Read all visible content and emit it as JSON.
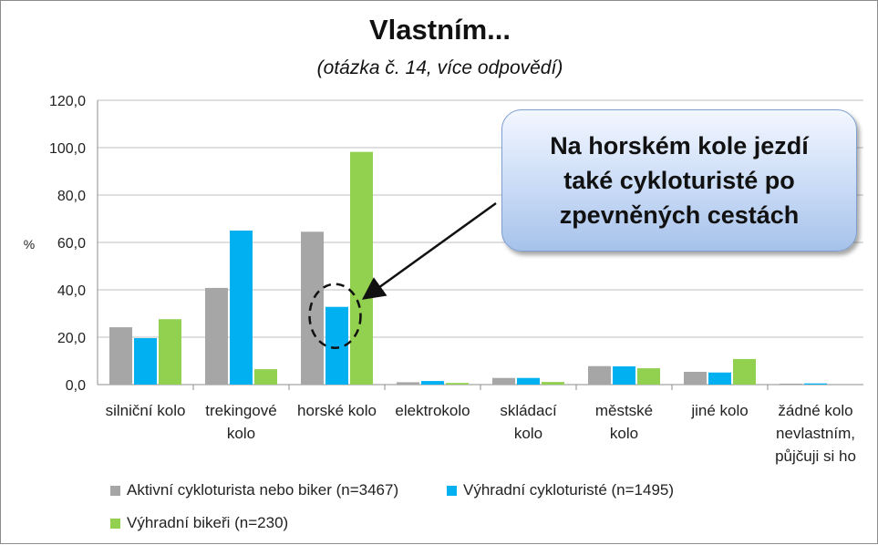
{
  "chart_data": {
    "type": "bar",
    "title": "Vlastním...",
    "subtitle": "(otázka č. 14, více odpovědí)",
    "ylabel": "%",
    "xlabel": "",
    "ylim": [
      0,
      120
    ],
    "yticks": [
      "0,0",
      "20,0",
      "40,0",
      "60,0",
      "80,0",
      "100,0",
      "120,0"
    ],
    "ytick_values": [
      0,
      20,
      40,
      60,
      80,
      100,
      120
    ],
    "grid": true,
    "legend_position": "bottom-left",
    "categories": [
      [
        "silniční kolo"
      ],
      [
        "trekingové",
        "kolo"
      ],
      [
        "horské kolo"
      ],
      [
        "elektrokolo"
      ],
      [
        "skládací",
        "kolo"
      ],
      [
        "městské",
        "kolo"
      ],
      [
        "jiné kolo"
      ],
      [
        "žádné kolo",
        "nevlastním,",
        "půjčuji si ho"
      ]
    ],
    "series": [
      {
        "name": "Aktivní cykloturista nebo biker (n=3467)",
        "color": "#a6a6a6",
        "values": [
          24.2,
          40.8,
          64.5,
          1.0,
          2.8,
          7.8,
          5.4,
          0.4
        ]
      },
      {
        "name": "Výhradní cykloturisté (n=1495)",
        "color": "#00b0f0",
        "values": [
          19.6,
          65.0,
          32.8,
          1.5,
          2.8,
          7.7,
          5.1,
          0.5
        ]
      },
      {
        "name": "Výhradní bikeři (n=230)",
        "color": "#92d050",
        "values": [
          27.6,
          6.5,
          98.2,
          0.7,
          1.1,
          6.9,
          10.8,
          0.0
        ]
      }
    ],
    "annotation": {
      "text": "Na horském kole jezdí také cykloturisté po zpevněných cestách",
      "target_category": "horské kolo",
      "target_series": "Výhradní cykloturisté (n=1495)"
    }
  }
}
